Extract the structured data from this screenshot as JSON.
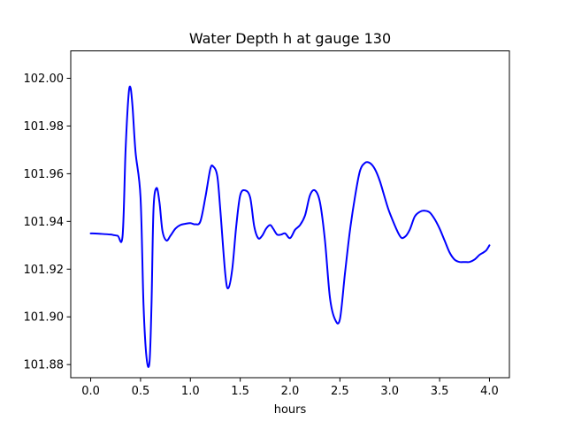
{
  "chart_data": {
    "type": "line",
    "title": "Water Depth h at gauge 130",
    "xlabel": "hours",
    "ylabel": "",
    "xlim": [
      -0.2,
      4.2
    ],
    "ylim": [
      101.8745,
      102.0115
    ],
    "xticks": [
      0.0,
      0.5,
      1.0,
      1.5,
      2.0,
      2.5,
      3.0,
      3.5,
      4.0
    ],
    "xtick_labels": [
      "0.0",
      "0.5",
      "1.0",
      "1.5",
      "2.0",
      "2.5",
      "3.0",
      "3.5",
      "4.0"
    ],
    "yticks": [
      101.88,
      101.9,
      101.92,
      101.94,
      101.96,
      101.98,
      102.0
    ],
    "ytick_labels": [
      "101.88",
      "101.90",
      "101.92",
      "101.94",
      "101.96",
      "101.98",
      "102.00"
    ],
    "grid": false,
    "legend": "none",
    "series": [
      {
        "color": "#0000ff",
        "x": [
          0.0,
          0.1,
          0.2,
          0.27,
          0.32,
          0.35,
          0.38,
          0.4,
          0.42,
          0.45,
          0.5,
          0.53,
          0.56,
          0.59,
          0.61,
          0.63,
          0.66,
          0.69,
          0.72,
          0.76,
          0.8,
          0.85,
          0.9,
          0.95,
          1.0,
          1.05,
          1.1,
          1.15,
          1.2,
          1.23,
          1.27,
          1.3,
          1.35,
          1.38,
          1.42,
          1.46,
          1.5,
          1.55,
          1.6,
          1.64,
          1.68,
          1.72,
          1.76,
          1.8,
          1.83,
          1.87,
          1.91,
          1.95,
          2.0,
          2.05,
          2.1,
          2.15,
          2.2,
          2.25,
          2.3,
          2.35,
          2.4,
          2.45,
          2.5,
          2.55,
          2.6,
          2.65,
          2.7,
          2.75,
          2.8,
          2.85,
          2.9,
          2.95,
          3.0,
          3.1,
          3.15,
          3.2,
          3.25,
          3.3,
          3.35,
          3.4,
          3.45,
          3.5,
          3.55,
          3.6,
          3.65,
          3.7,
          3.75,
          3.8,
          3.85,
          3.9,
          3.94,
          3.97,
          4.0
        ],
        "y": [
          101.935,
          101.9348,
          101.9345,
          101.934,
          101.934,
          101.97,
          101.993,
          101.996,
          101.988,
          101.969,
          101.95,
          101.905,
          101.883,
          101.881,
          101.905,
          101.945,
          101.954,
          101.948,
          101.936,
          101.932,
          101.934,
          101.937,
          101.9385,
          101.939,
          101.9393,
          101.9388,
          101.94,
          101.95,
          101.962,
          101.963,
          101.959,
          101.945,
          101.918,
          101.912,
          101.92,
          101.938,
          101.951,
          101.953,
          101.95,
          101.938,
          101.933,
          101.934,
          101.937,
          101.9385,
          101.937,
          101.9345,
          101.9345,
          101.935,
          101.933,
          101.9365,
          101.9385,
          101.9425,
          101.951,
          101.953,
          101.948,
          101.932,
          101.908,
          101.899,
          101.899,
          101.918,
          101.936,
          101.95,
          101.961,
          101.9645,
          101.9645,
          101.962,
          101.957,
          101.95,
          101.9435,
          101.934,
          101.9335,
          101.9365,
          101.942,
          101.944,
          101.9445,
          101.9438,
          101.941,
          101.937,
          101.932,
          101.927,
          101.924,
          101.923,
          101.923,
          101.923,
          101.924,
          101.926,
          101.927,
          101.928,
          101.93
        ]
      }
    ]
  }
}
